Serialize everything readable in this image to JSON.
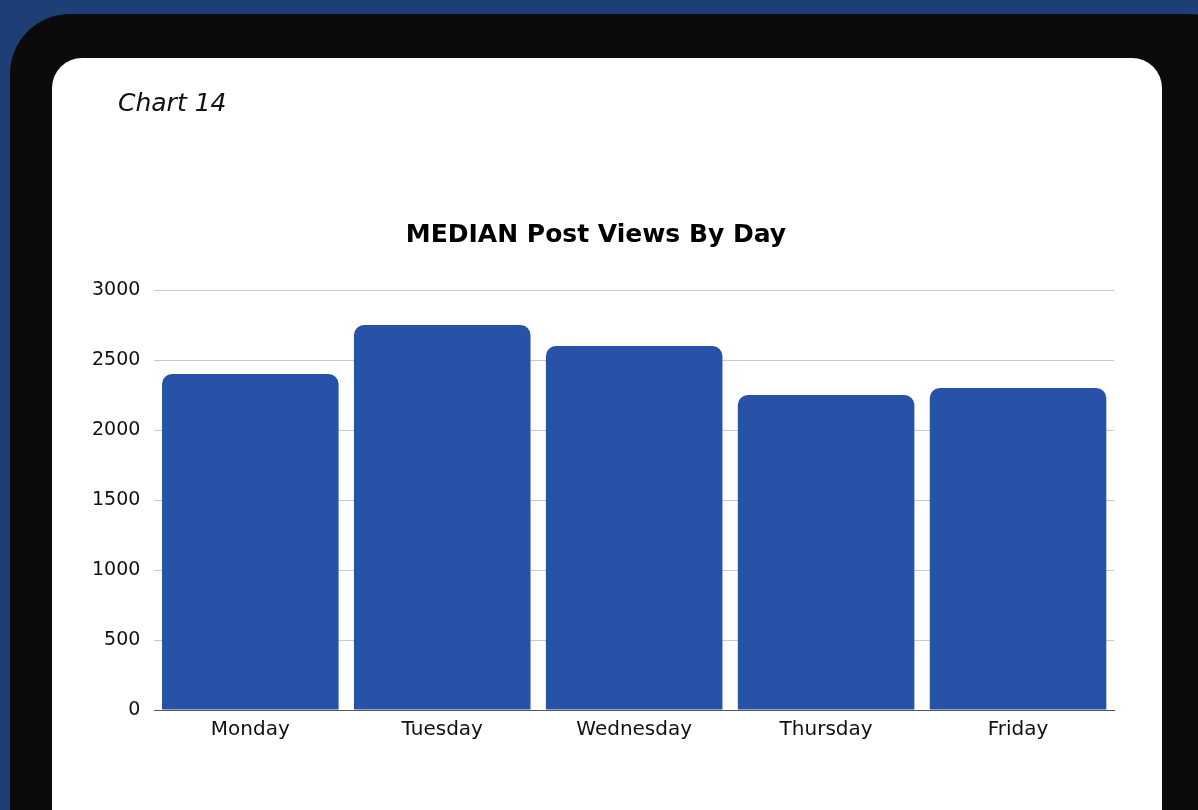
{
  "chart_data": {
    "type": "bar",
    "title": "MEDIAN Post Views By Day",
    "annotations": [
      "Chart 14"
    ],
    "categories": [
      "Monday",
      "Tuesday",
      "Wednesday",
      "Thursday",
      "Friday"
    ],
    "values": [
      2400,
      2750,
      2600,
      2250,
      2300
    ],
    "color": "#2752a8",
    "ylim": [
      0,
      3000
    ],
    "yticks": [
      0,
      500,
      1000,
      1500,
      2000,
      2500,
      3000
    ],
    "grid": "y",
    "legend": false
  }
}
